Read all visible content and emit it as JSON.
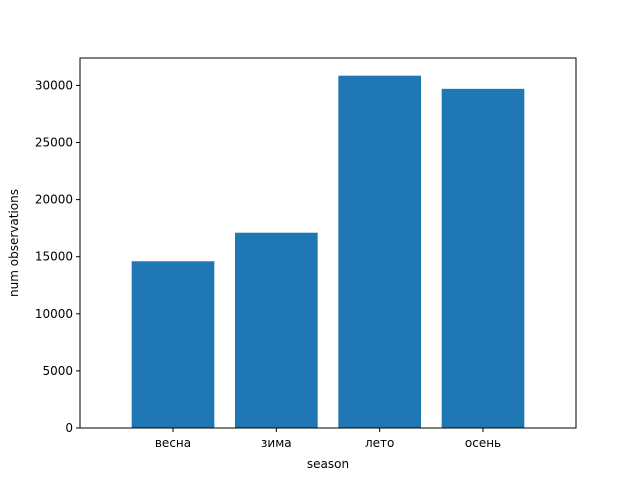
{
  "chart_data": {
    "type": "bar",
    "title": "",
    "xlabel": "season",
    "ylabel": "num observations",
    "categories": [
      "весна",
      "зима",
      "лето",
      "осень"
    ],
    "values": [
      14600,
      17100,
      30850,
      29700
    ],
    "ylim": [
      0,
      32400
    ],
    "yticks": [
      0,
      5000,
      10000,
      15000,
      20000,
      25000,
      30000
    ],
    "grid": false,
    "legend": "none",
    "bar_color": "#1f77b4"
  }
}
